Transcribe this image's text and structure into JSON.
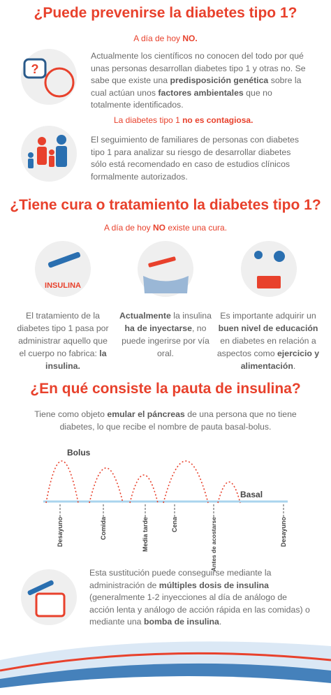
{
  "section1": {
    "title": "¿Puede prevenirse la diabetes tipo 1?",
    "subtitle": [
      "A día de hoy ",
      "NO."
    ],
    "paragraph1": [
      "Actualmente los científicos no conocen del todo por qué unas personas desarrollan diabetes tipo 1 y otras no. Se sabe que existe una ",
      "predisposición genética",
      " sobre la cual actúan unos ",
      "factores ambientales",
      " que no totalmente identificados."
    ],
    "note": [
      "La diabetes tipo 1 ",
      "no es contagiosa."
    ],
    "paragraph2": "El seguimiento de familiares de personas con diabetes tipo 1 para analizar su riesgo de desarrollar diabetes sólo está recomendado en caso de estudios clínicos formalmente autorizados."
  },
  "section2": {
    "title": "¿Tiene cura o tratamiento la diabetes tipo 1?",
    "subtitle": [
      "A día de hoy ",
      "NO",
      " existe una cura."
    ],
    "icon_label": "INSULINA",
    "columns": [
      [
        "El tratamiento de la diabetes tipo 1 pasa por administrar aquello que el cuerpo no fabrica: ",
        "la insulina."
      ],
      [
        "Actualmente",
        " la insulina ",
        "ha de inyectarse",
        ", no puede ingerirse por vía oral."
      ],
      [
        "Es importante adquirir un ",
        "buen nivel de educación",
        " en diabetes en relación a aspectos como ",
        "ejercicio y alimentación",
        "."
      ]
    ]
  },
  "section3": {
    "title": "¿En qué consiste la pauta de insulina?",
    "intro": [
      "Tiene como objeto ",
      "emular el páncreas",
      " de una persona que no tiene diabetes, lo que recibe el nombre de pauta basal-bolus."
    ],
    "diagram": {
      "bolus_label": "Bolus",
      "basal_label": "Basal",
      "moments": [
        "Desayuno",
        "Comida",
        "Media tarde",
        "Cena",
        "Antes de acostarse",
        "Desayuno"
      ]
    },
    "closing": [
      "Esta sustitución puede conseguirse mediante la administración de ",
      "múltiples dosis de insulina",
      " (generalmente 1-2 inyecciones al día de análogo de acción lenta y análogo de acción rápida en las comidas) o mediante una ",
      "bomba de insulina",
      "."
    ]
  }
}
